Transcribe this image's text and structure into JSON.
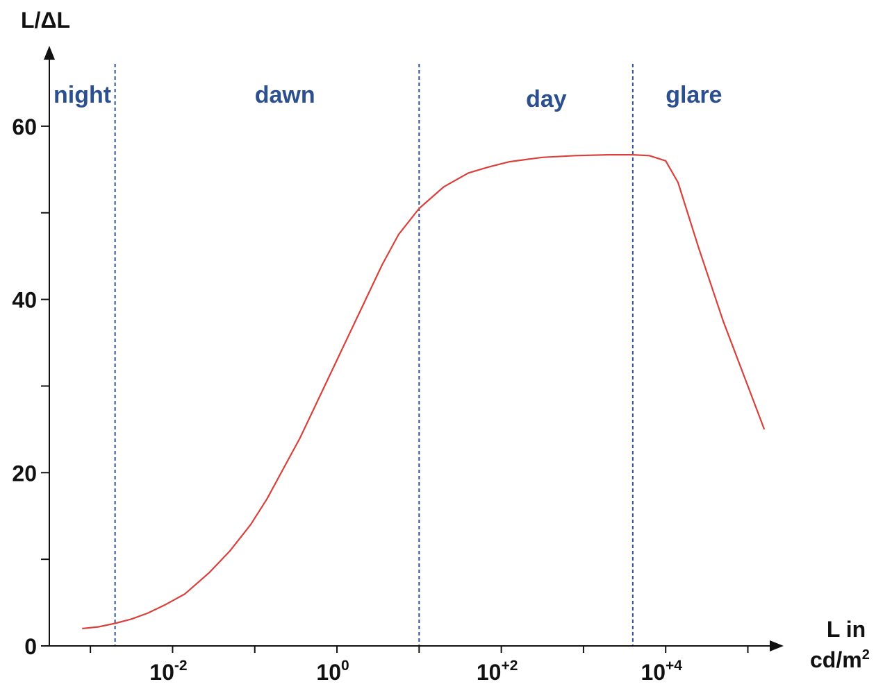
{
  "chart_data": {
    "type": "line",
    "xlabel_line1": "L in",
    "xlabel_line2": "cd/m",
    "xlabel_sup": "2",
    "ylabel": "L/ΔL",
    "x_scale": "log10",
    "xlim": [
      -3.5,
      5.3
    ],
    "ylim": [
      0,
      68
    ],
    "y_ticks": [
      {
        "value": 0,
        "label": "0"
      },
      {
        "value": 20,
        "label": "20"
      },
      {
        "value": 40,
        "label": "40"
      },
      {
        "value": 60,
        "label": "60"
      }
    ],
    "y_minor_ticks": [
      10,
      30,
      50
    ],
    "x_ticks": [
      {
        "log": -2,
        "base": "10",
        "exp": "-2"
      },
      {
        "log": 0,
        "base": "10",
        "exp": "0"
      },
      {
        "log": 2,
        "base": "10",
        "exp": "+2"
      },
      {
        "log": 4,
        "base": "10",
        "exp": "+4"
      }
    ],
    "x_minor_ticks": [
      -3,
      -1,
      1,
      3,
      5
    ],
    "regions": [
      {
        "label": "night",
        "x_log": -3.5
      },
      {
        "label": "dawn",
        "x_log": -1.0
      },
      {
        "label": "day",
        "x_log": 2.3
      },
      {
        "label": "glare",
        "x_log": 4.0
      }
    ],
    "region_boundaries_log": [
      -2.7,
      1.0,
      3.6
    ],
    "series": [
      {
        "color": "#d9403a",
        "x_log": [
          -3.1,
          -2.9,
          -2.7,
          -2.5,
          -2.3,
          -2.1,
          -1.85,
          -1.55,
          -1.3,
          -1.05,
          -0.85,
          -0.65,
          -0.45,
          -0.2,
          0.0,
          0.2,
          0.35,
          0.55,
          0.75,
          1.0,
          1.3,
          1.6,
          1.85,
          2.1,
          2.5,
          2.9,
          3.3,
          3.6,
          3.8,
          4.0,
          4.15,
          4.4,
          4.7,
          5.0,
          5.2
        ],
        "y": [
          2.0,
          2.2,
          2.6,
          3.1,
          3.8,
          4.7,
          6.0,
          8.5,
          11.0,
          14.0,
          17.0,
          20.5,
          24.0,
          29.0,
          33.0,
          37.0,
          40.0,
          44.0,
          47.5,
          50.5,
          53.0,
          54.6,
          55.3,
          55.9,
          56.4,
          56.6,
          56.7,
          56.7,
          56.6,
          56.0,
          53.5,
          46.0,
          37.5,
          30.0,
          25.0
        ]
      }
    ],
    "colors": {
      "axis": "#111111",
      "boundary": "#2f4f96",
      "region_label": "#2b4f8f",
      "line": "#d9403a"
    }
  }
}
